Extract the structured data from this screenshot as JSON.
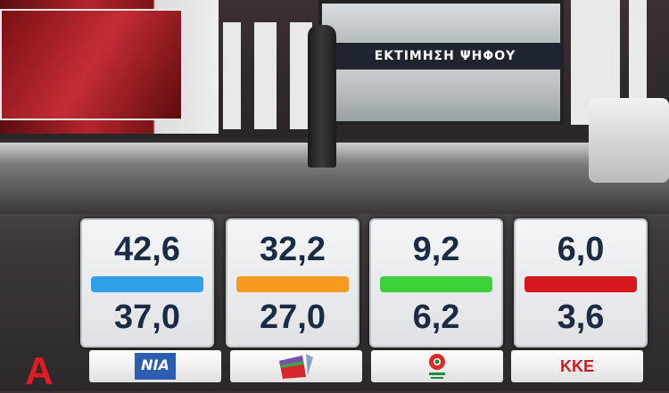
{
  "title": "ΕΚΤΙΜΗΣΗ ΨΗΦΟΥ",
  "parties": [
    {
      "upper": "42,6",
      "lower": "37,0",
      "color": "#2f9fe8",
      "logo": "ΝΙΑ",
      "logo_icon": "nd-logo"
    },
    {
      "upper": "32,2",
      "lower": "27,0",
      "color": "#f59a1e",
      "logo": "",
      "logo_icon": "syriza-logo"
    },
    {
      "upper": "9,2",
      "lower": "6,2",
      "color": "#3fd13a",
      "logo": "",
      "logo_icon": "kinal-logo"
    },
    {
      "upper": "6,0",
      "lower": "3,6",
      "color": "#d5181e",
      "logo": "ΚΚΕ",
      "logo_icon": "kke-logo"
    }
  ],
  "channel_logo": "Α"
}
